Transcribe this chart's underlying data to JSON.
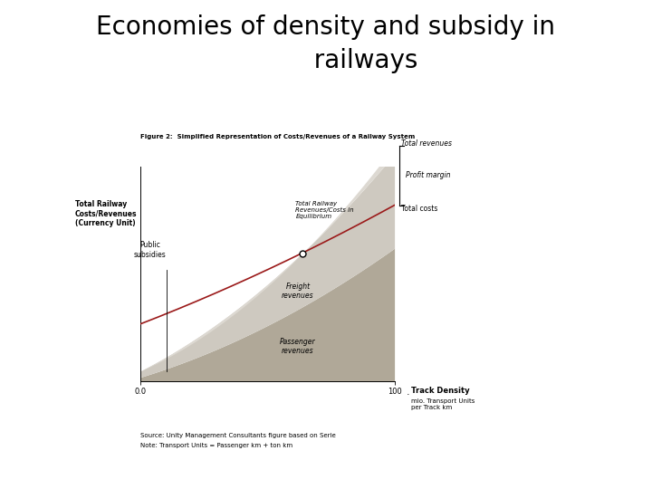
{
  "title": "Economies of density and subsidy in\n          railways",
  "title_fontsize": 20,
  "fig_caption": "Figure 2:  Simplified Representation of Costs/Revenues of a Railway System",
  "ylabel": "Total Railway\nCosts/Revenues\n(Currency Unit)",
  "xlabel_main": "Track Density",
  "xlabel_sub": "mio. Transport Units\nper Track km",
  "xtick_left": "0.0",
  "xtick_right": "100",
  "source_text": "Source: Unity Management Consultants figure based on Serie",
  "note_text": "Note: Transport Units = Passenger km + ton km",
  "background_color": "#ffffff",
  "passenger_color": "#b0a898",
  "freight_color": "#cec9c0",
  "upper_gray_color": "#ddd9d2",
  "total_cost_line_color": "#9b1a1a",
  "equilibrium_label": "Total Railway\nRevenues/Costs in\nEquilibrium",
  "public_subsidy_label": "Public\nsubsidies",
  "freight_label": "Freight\nrevenues",
  "passenger_label": "Passenger\nrevenues",
  "total_revenues_label": "Total revenues",
  "profit_margin_label": "Profit margin",
  "total_costs_label": "Total costs"
}
